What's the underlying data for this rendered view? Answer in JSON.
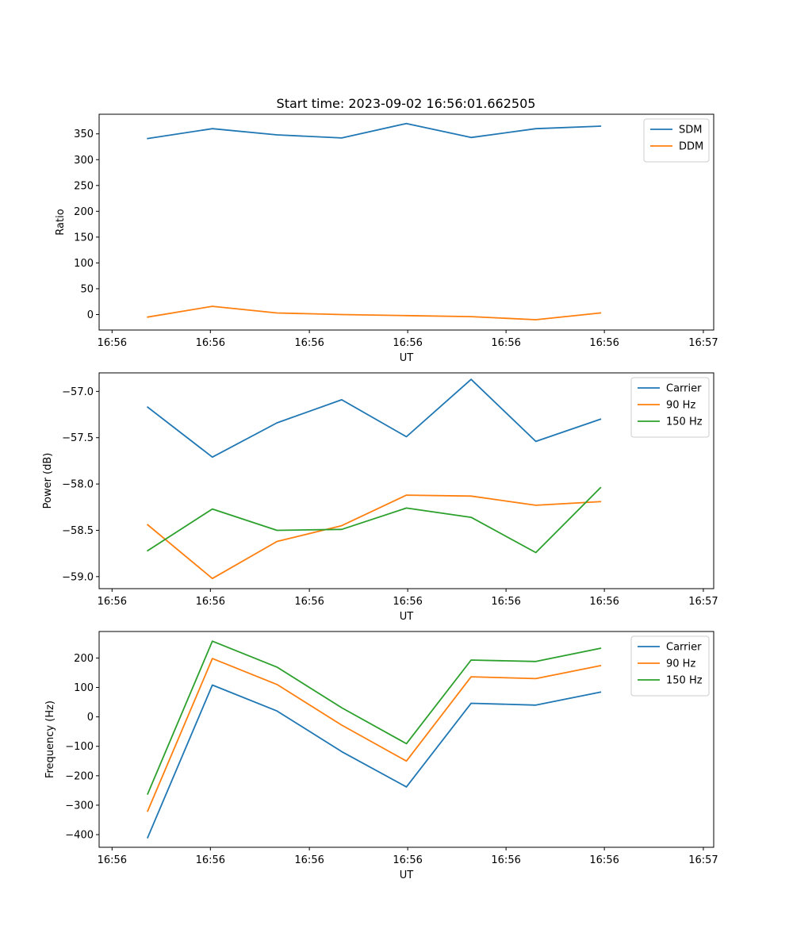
{
  "figure_title": "Start time: 2023-09-02 16:56:01.662505",
  "colors": {
    "blue": "#1f77b4",
    "orange": "#ff7f0e",
    "green": "#2ca02c"
  },
  "chart_data": [
    {
      "type": "line",
      "title": "Start time: 2023-09-02 16:56:01.662505",
      "xlabel": "UT",
      "ylabel": "Ratio",
      "xlim": [
        -0.75,
        8.75
      ],
      "ylim": [
        -30,
        388
      ],
      "x": [
        0,
        1,
        2,
        3,
        4,
        5,
        6,
        7
      ],
      "xticks": [
        -0.55,
        0.97,
        2.5,
        4.02,
        5.54,
        7.06,
        8.59
      ],
      "xtick_labels": [
        "16:56",
        "16:56",
        "16:56",
        "16:56",
        "16:56",
        "16:56",
        "16:57"
      ],
      "yticks": [
        0,
        50,
        100,
        150,
        200,
        250,
        300,
        350
      ],
      "ytick_labels": [
        "0",
        "50",
        "100",
        "150",
        "200",
        "250",
        "300",
        "350"
      ],
      "legend_position": "top-right",
      "series": [
        {
          "name": "SDM",
          "color": "#1f77b4",
          "values": [
            341,
            360,
            348,
            342,
            370,
            343,
            360,
            365
          ]
        },
        {
          "name": "DDM",
          "color": "#ff7f0e",
          "values": [
            -5,
            16,
            3,
            0,
            -2,
            -4,
            -10,
            3
          ]
        }
      ]
    },
    {
      "type": "line",
      "title": "",
      "xlabel": "UT",
      "ylabel": "Power (dB)",
      "xlim": [
        -0.75,
        8.75
      ],
      "ylim": [
        -59.13,
        -56.8
      ],
      "x": [
        0,
        1,
        2,
        3,
        4,
        5,
        6,
        7
      ],
      "xticks": [
        -0.55,
        0.97,
        2.5,
        4.02,
        5.54,
        7.06,
        8.59
      ],
      "xtick_labels": [
        "16:56",
        "16:56",
        "16:56",
        "16:56",
        "16:56",
        "16:56",
        "16:57"
      ],
      "yticks": [
        -59.0,
        -58.5,
        -58.0,
        -57.5,
        -57.0
      ],
      "ytick_labels": [
        "−59.0",
        "−58.5",
        "−58.0",
        "−57.5",
        "−57.0"
      ],
      "legend_position": "top-right",
      "series": [
        {
          "name": "Carrier",
          "color": "#1f77b4",
          "values": [
            -57.17,
            -57.71,
            -57.34,
            -57.09,
            -57.49,
            -56.87,
            -57.54,
            -57.3
          ]
        },
        {
          "name": "90 Hz",
          "color": "#ff7f0e",
          "values": [
            -58.44,
            -59.02,
            -58.62,
            -58.45,
            -58.12,
            -58.13,
            -58.23,
            -58.19
          ]
        },
        {
          "name": "150 Hz",
          "color": "#2ca02c",
          "values": [
            -58.72,
            -58.27,
            -58.5,
            -58.49,
            -58.26,
            -58.36,
            -58.74,
            -58.04
          ]
        }
      ]
    },
    {
      "type": "line",
      "title": "",
      "xlabel": "UT",
      "ylabel": "Frequency (Hz)",
      "xlim": [
        -0.75,
        8.75
      ],
      "ylim": [
        -443,
        290
      ],
      "x": [
        0,
        1,
        2,
        3,
        4,
        5,
        6,
        7
      ],
      "xticks": [
        -0.55,
        0.97,
        2.5,
        4.02,
        5.54,
        7.06,
        8.59
      ],
      "xtick_labels": [
        "16:56",
        "16:56",
        "16:56",
        "16:56",
        "16:56",
        "16:56",
        "16:57"
      ],
      "yticks": [
        -400,
        -300,
        -200,
        -100,
        0,
        100,
        200
      ],
      "ytick_labels": [
        "−400",
        "−300",
        "−200",
        "−100",
        "0",
        "100",
        "200"
      ],
      "legend_position": "top-right",
      "series": [
        {
          "name": "Carrier",
          "color": "#1f77b4",
          "values": [
            -410,
            108,
            20,
            -118,
            -238,
            46,
            40,
            84
          ]
        },
        {
          "name": "90 Hz",
          "color": "#ff7f0e",
          "values": [
            -320,
            198,
            110,
            -28,
            -150,
            136,
            130,
            174
          ]
        },
        {
          "name": "150 Hz",
          "color": "#2ca02c",
          "values": [
            -262,
            257,
            169,
            31,
            -91,
            193,
            188,
            233
          ]
        }
      ]
    }
  ]
}
